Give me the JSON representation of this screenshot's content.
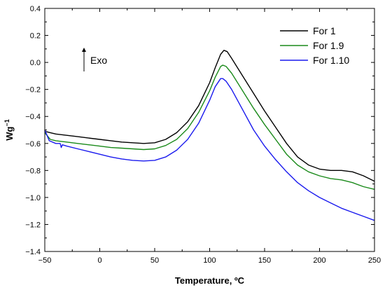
{
  "chart_data": {
    "type": "line",
    "title": "",
    "xlabel": "Temperature, ºC",
    "ylabel_main": "Wg",
    "ylabel_sup": "−1",
    "xlim": [
      -50,
      250
    ],
    "ylim": [
      -1.4,
      0.4
    ],
    "x_ticks": [
      -50,
      0,
      50,
      100,
      150,
      200,
      250
    ],
    "x_tick_labels": [
      "−50",
      "0",
      "50",
      "100",
      "150",
      "200",
      "250"
    ],
    "y_ticks": [
      -1.4,
      -1.2,
      -1.0,
      -0.8,
      -0.6,
      -0.4,
      -0.2,
      0.0,
      0.2,
      0.4
    ],
    "y_tick_labels": [
      "−1.4",
      "−1.2",
      "−1.0",
      "−0.8",
      "−0.6",
      "−0.4",
      "−0.2",
      "0.0",
      "0.2",
      "0.4"
    ],
    "grid": false,
    "legend_position": "top-right",
    "annotation": {
      "text": "Exo",
      "arrow": "up"
    },
    "series": [
      {
        "name": "For 1",
        "color": "#000000",
        "points": [
          [
            -50,
            -0.51
          ],
          [
            -45,
            -0.52
          ],
          [
            -40,
            -0.53
          ],
          [
            -30,
            -0.54
          ],
          [
            -20,
            -0.55
          ],
          [
            -10,
            -0.56
          ],
          [
            0,
            -0.57
          ],
          [
            10,
            -0.58
          ],
          [
            20,
            -0.59
          ],
          [
            30,
            -0.595
          ],
          [
            40,
            -0.6
          ],
          [
            50,
            -0.595
          ],
          [
            60,
            -0.57
          ],
          [
            70,
            -0.52
          ],
          [
            80,
            -0.44
          ],
          [
            90,
            -0.32
          ],
          [
            100,
            -0.15
          ],
          [
            105,
            -0.04
          ],
          [
            110,
            0.06
          ],
          [
            113,
            0.09
          ],
          [
            116,
            0.08
          ],
          [
            120,
            0.03
          ],
          [
            130,
            -0.1
          ],
          [
            140,
            -0.23
          ],
          [
            150,
            -0.36
          ],
          [
            160,
            -0.48
          ],
          [
            170,
            -0.6
          ],
          [
            180,
            -0.7
          ],
          [
            190,
            -0.76
          ],
          [
            200,
            -0.79
          ],
          [
            210,
            -0.8
          ],
          [
            220,
            -0.8
          ],
          [
            230,
            -0.81
          ],
          [
            240,
            -0.84
          ],
          [
            250,
            -0.88
          ]
        ]
      },
      {
        "name": "For 1.9",
        "color": "#1a8a1a",
        "points": [
          [
            -50,
            -0.52
          ],
          [
            -45,
            -0.57
          ],
          [
            -40,
            -0.58
          ],
          [
            -30,
            -0.59
          ],
          [
            -20,
            -0.6
          ],
          [
            -10,
            -0.61
          ],
          [
            0,
            -0.62
          ],
          [
            10,
            -0.63
          ],
          [
            20,
            -0.635
          ],
          [
            30,
            -0.64
          ],
          [
            40,
            -0.645
          ],
          [
            50,
            -0.64
          ],
          [
            60,
            -0.615
          ],
          [
            70,
            -0.57
          ],
          [
            80,
            -0.49
          ],
          [
            90,
            -0.37
          ],
          [
            100,
            -0.21
          ],
          [
            105,
            -0.11
          ],
          [
            110,
            -0.03
          ],
          [
            112,
            -0.02
          ],
          [
            115,
            -0.03
          ],
          [
            120,
            -0.08
          ],
          [
            130,
            -0.21
          ],
          [
            140,
            -0.34
          ],
          [
            150,
            -0.46
          ],
          [
            160,
            -0.57
          ],
          [
            170,
            -0.68
          ],
          [
            180,
            -0.76
          ],
          [
            190,
            -0.81
          ],
          [
            200,
            -0.84
          ],
          [
            210,
            -0.86
          ],
          [
            220,
            -0.87
          ],
          [
            230,
            -0.89
          ],
          [
            240,
            -0.92
          ],
          [
            250,
            -0.94
          ]
        ]
      },
      {
        "name": "For 1.10",
        "color": "#1a1aee",
        "points": [
          [
            -50,
            -0.5
          ],
          [
            -46,
            -0.58
          ],
          [
            -40,
            -0.6
          ],
          [
            -36,
            -0.6
          ],
          [
            -35,
            -0.63
          ],
          [
            -34,
            -0.61
          ],
          [
            -30,
            -0.62
          ],
          [
            -20,
            -0.64
          ],
          [
            -10,
            -0.66
          ],
          [
            0,
            -0.68
          ],
          [
            10,
            -0.7
          ],
          [
            20,
            -0.715
          ],
          [
            30,
            -0.725
          ],
          [
            40,
            -0.73
          ],
          [
            50,
            -0.725
          ],
          [
            60,
            -0.7
          ],
          [
            70,
            -0.65
          ],
          [
            80,
            -0.57
          ],
          [
            90,
            -0.45
          ],
          [
            100,
            -0.28
          ],
          [
            105,
            -0.18
          ],
          [
            110,
            -0.12
          ],
          [
            112,
            -0.12
          ],
          [
            115,
            -0.14
          ],
          [
            120,
            -0.2
          ],
          [
            130,
            -0.35
          ],
          [
            140,
            -0.5
          ],
          [
            150,
            -0.62
          ],
          [
            160,
            -0.72
          ],
          [
            170,
            -0.81
          ],
          [
            180,
            -0.89
          ],
          [
            190,
            -0.95
          ],
          [
            200,
            -1.0
          ],
          [
            210,
            -1.04
          ],
          [
            220,
            -1.08
          ],
          [
            230,
            -1.11
          ],
          [
            240,
            -1.14
          ],
          [
            250,
            -1.17
          ]
        ]
      }
    ]
  }
}
